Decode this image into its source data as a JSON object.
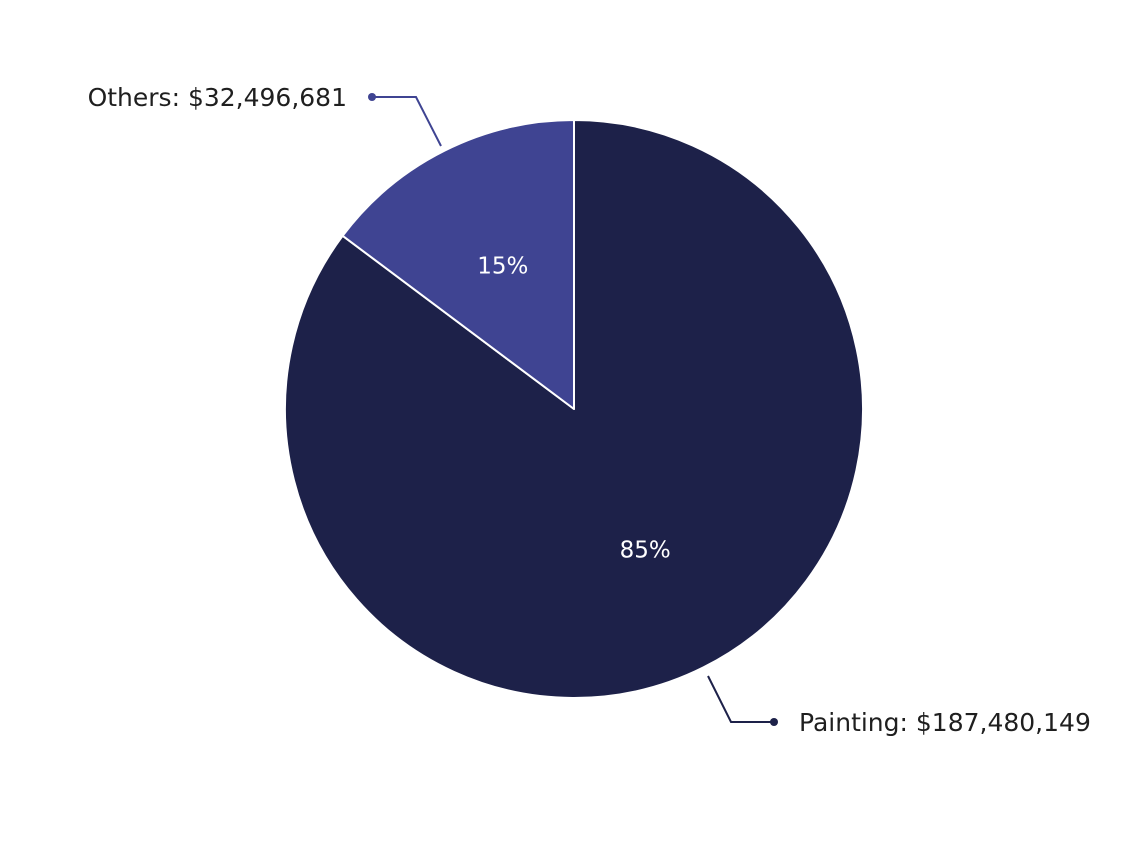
{
  "chart_data": {
    "type": "pie",
    "slices": [
      {
        "label": "Painting",
        "value": 187480149,
        "value_text": "$187,480,149",
        "percent": 85,
        "percent_text": "85%",
        "callout": "Painting: $187,480,149",
        "color": "#1d2149"
      },
      {
        "label": "Others",
        "value": 32496681,
        "value_text": "$32,496,681",
        "percent": 15,
        "percent_text": "15%",
        "callout": "Others: $32,496,681",
        "color": "#3f4492"
      }
    ],
    "start_angle": "12 o'clock",
    "direction": "clockwise",
    "legend": "none",
    "labels": "outside callouts with leader lines; percentages inside slices"
  }
}
